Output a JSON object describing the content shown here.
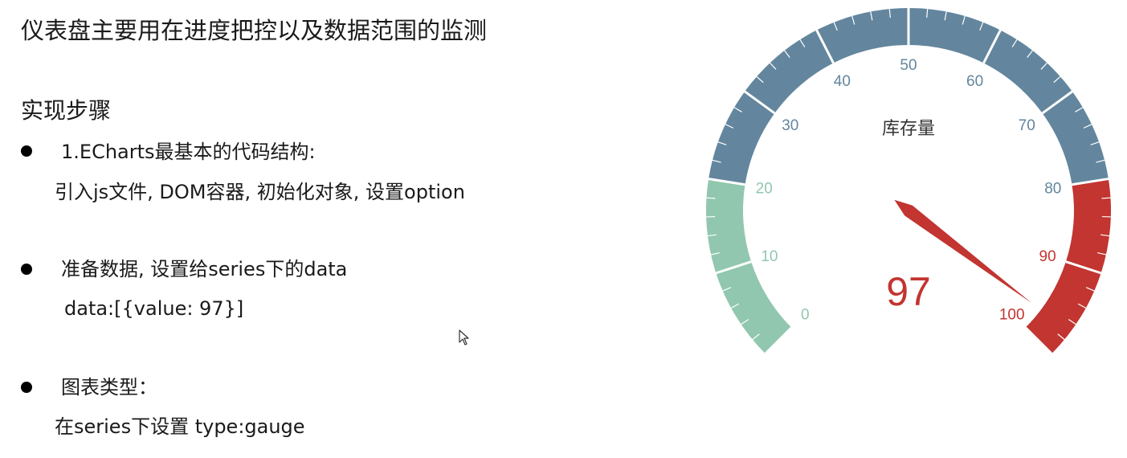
{
  "text": {
    "heading": "仪表盘主要用在进度把控以及数据范围的监测",
    "section_title": "实现步骤",
    "steps": [
      {
        "title": "1.ECharts最基本的代码结构:",
        "detail": "引入js文件, DOM容器, 初始化对象, 设置option"
      },
      {
        "title": "准备数据, 设置给series下的data",
        "detail": "data:[{value: 97}]"
      },
      {
        "title": "图表类型：",
        "detail": "在series下设置 type:gauge"
      }
    ]
  },
  "chart_data": {
    "type": "gauge",
    "min": 0,
    "max": 100,
    "split_number": 10,
    "value": 97,
    "series_name": "库存量",
    "tick_labels": [
      "0",
      "10",
      "20",
      "30",
      "40",
      "50",
      "60",
      "70",
      "80",
      "90",
      "100"
    ],
    "color_bands": [
      {
        "to": 0.2,
        "color": "#91c7ae"
      },
      {
        "to": 0.8,
        "color": "#63869e"
      },
      {
        "to": 1.0,
        "color": "#c23531"
      }
    ],
    "detail_color": "#c23531",
    "pointer_color": "#c23531"
  }
}
